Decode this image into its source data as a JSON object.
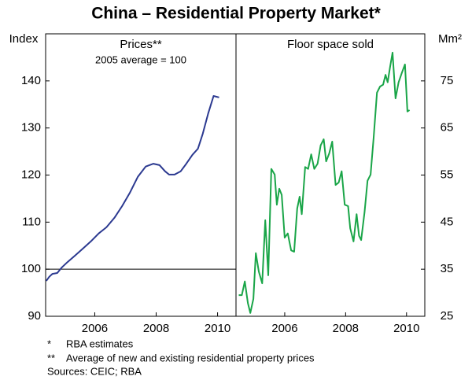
{
  "title": "China – Residential Property Market*",
  "chart_data": [
    {
      "type": "line",
      "title": "Prices**",
      "subtitle": "2005 average = 100",
      "y_label": "Index",
      "y_axis_side": "left",
      "x": [
        2004.42,
        2004.52,
        2004.62,
        2004.78,
        2004.93,
        2005.11,
        2005.36,
        2005.62,
        2005.87,
        2006.13,
        2006.38,
        2006.64,
        2006.89,
        2007.15,
        2007.4,
        2007.66,
        2007.91,
        2008.11,
        2008.29,
        2008.42,
        2008.6,
        2008.8,
        2008.98,
        2009.18,
        2009.36,
        2009.52,
        2009.69,
        2009.87,
        2010.05
      ],
      "values": [
        97.5,
        98.4,
        99,
        99.2,
        100.4,
        101.5,
        102.9,
        104.4,
        105.9,
        107.6,
        108.9,
        110.9,
        113.4,
        116.3,
        119.6,
        121.8,
        122.4,
        122.1,
        120.8,
        120.1,
        120.1,
        120.8,
        122.4,
        124.3,
        125.6,
        128.8,
        133,
        136.8,
        136.5
      ],
      "color": "#2b3990",
      "reference_line": 100,
      "xlim": [
        2004.4,
        2010.6
      ],
      "xticks": [
        2006,
        2008,
        2010
      ],
      "ylim": [
        90,
        150
      ],
      "yticks": [
        90,
        100,
        110,
        120,
        130,
        140
      ]
    },
    {
      "type": "line",
      "title": "Floor space sold",
      "y_label": "Mm²",
      "y_axis_side": "right",
      "x": [
        2004.49,
        2004.59,
        2004.69,
        2004.79,
        2004.87,
        2004.97,
        2005.05,
        2005.15,
        2005.26,
        2005.36,
        2005.46,
        2005.56,
        2005.67,
        2005.74,
        2005.82,
        2005.9,
        2006.0,
        2006.1,
        2006.21,
        2006.31,
        2006.41,
        2006.49,
        2006.56,
        2006.67,
        2006.77,
        2006.87,
        2006.97,
        2007.08,
        2007.18,
        2007.28,
        2007.36,
        2007.46,
        2007.56,
        2007.67,
        2007.77,
        2007.87,
        2007.97,
        2008.08,
        2008.15,
        2008.26,
        2008.36,
        2008.44,
        2008.51,
        2008.62,
        2008.72,
        2008.82,
        2008.92,
        2009.03,
        2009.13,
        2009.23,
        2009.31,
        2009.38,
        2009.46,
        2009.54,
        2009.64,
        2009.74,
        2009.85,
        2009.95,
        2010.03,
        2010.1
      ],
      "values": [
        29.5,
        29.5,
        32.4,
        27.8,
        25.7,
        28.7,
        38.4,
        34.5,
        32,
        45.4,
        33.7,
        56.3,
        55.1,
        48.7,
        52.1,
        50.8,
        41.7,
        42.6,
        39,
        38.7,
        47.9,
        50.4,
        46.7,
        56.7,
        56.3,
        59.4,
        56.3,
        57.4,
        61.3,
        62.6,
        57.9,
        59.6,
        62.1,
        52.9,
        53.4,
        55.8,
        48.7,
        48.4,
        43.7,
        40.9,
        46.7,
        42.1,
        41.2,
        47.1,
        53.8,
        55.1,
        63,
        72.5,
        73.8,
        74.2,
        76.3,
        74.7,
        78,
        81,
        71.3,
        74.7,
        76.8,
        78.5,
        68.5,
        68.8
      ],
      "color": "#1aa548",
      "xlim": [
        2004.4,
        2010.6
      ],
      "xticks": [
        2006,
        2008,
        2010
      ],
      "ylim": [
        25,
        85
      ],
      "yticks": [
        25,
        35,
        45,
        55,
        65,
        75
      ]
    }
  ],
  "notes": [
    {
      "marker": "*",
      "text": "RBA estimates"
    },
    {
      "marker": "**",
      "text": "Average of new and existing residential property prices"
    }
  ],
  "sources": "Sources: CEIC; RBA"
}
